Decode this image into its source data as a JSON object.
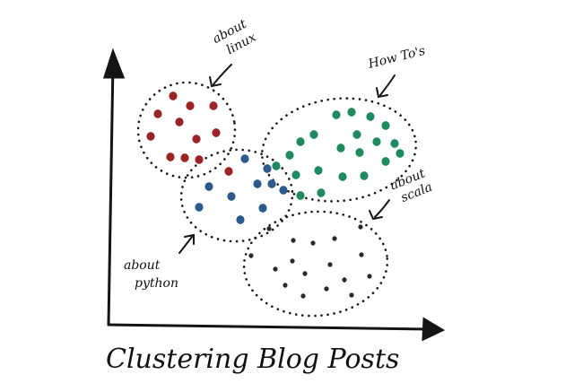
{
  "title": "Clustering Blog Posts",
  "colors": {
    "ink": "#141414",
    "linux": "#9b2424",
    "python": "#2c5a8c",
    "howtos": "#1f8a5e",
    "scala": "#2a2a2a"
  },
  "clusters": [
    {
      "key": "linux",
      "label_lines": [
        "about",
        "linux"
      ],
      "color": "#9b2424",
      "points": [
        [
          193,
          107
        ],
        [
          212,
          118
        ],
        [
          238,
          118
        ],
        [
          176,
          127
        ],
        [
          200,
          136
        ],
        [
          168,
          152
        ],
        [
          219,
          155
        ],
        [
          241,
          148
        ],
        [
          190,
          175
        ],
        [
          255,
          191
        ],
        [
          206,
          176
        ],
        [
          222,
          178
        ]
      ]
    },
    {
      "key": "python",
      "label_lines": [
        "about",
        "python"
      ],
      "color": "#2c5a8c",
      "points": [
        [
          273,
          177
        ],
        [
          233,
          208
        ],
        [
          258,
          219
        ],
        [
          287,
          205
        ],
        [
          303,
          205
        ],
        [
          298,
          188
        ],
        [
          316,
          212
        ],
        [
          222,
          231
        ],
        [
          268,
          245
        ],
        [
          293,
          232
        ]
      ]
    },
    {
      "key": "howtos",
      "label_lines": [
        "How To's"
      ],
      "color": "#1f8a5e",
      "points": [
        [
          375,
          128
        ],
        [
          392,
          125
        ],
        [
          413,
          130
        ],
        [
          430,
          140
        ],
        [
          398,
          150
        ],
        [
          420,
          158
        ],
        [
          440,
          160
        ],
        [
          380,
          165
        ],
        [
          401,
          170
        ],
        [
          350,
          150
        ],
        [
          335,
          158
        ],
        [
          323,
          173
        ],
        [
          308,
          185
        ],
        [
          330,
          195
        ],
        [
          355,
          190
        ],
        [
          382,
          197
        ],
        [
          406,
          196
        ],
        [
          430,
          180
        ],
        [
          446,
          171
        ],
        [
          358,
          215
        ],
        [
          335,
          218
        ]
      ]
    },
    {
      "key": "scala",
      "label_lines": [
        "about",
        "scala"
      ],
      "color": "#2a2a2a",
      "points": [
        [
          300,
          255
        ],
        [
          327,
          268
        ],
        [
          349,
          271
        ],
        [
          373,
          266
        ],
        [
          402,
          253
        ],
        [
          280,
          285
        ],
        [
          326,
          291
        ],
        [
          368,
          295
        ],
        [
          403,
          284
        ],
        [
          307,
          300
        ],
        [
          340,
          305
        ],
        [
          384,
          312
        ],
        [
          412,
          308
        ],
        [
          318,
          318
        ],
        [
          338,
          330
        ],
        [
          364,
          322
        ],
        [
          392,
          329
        ]
      ]
    }
  ]
}
